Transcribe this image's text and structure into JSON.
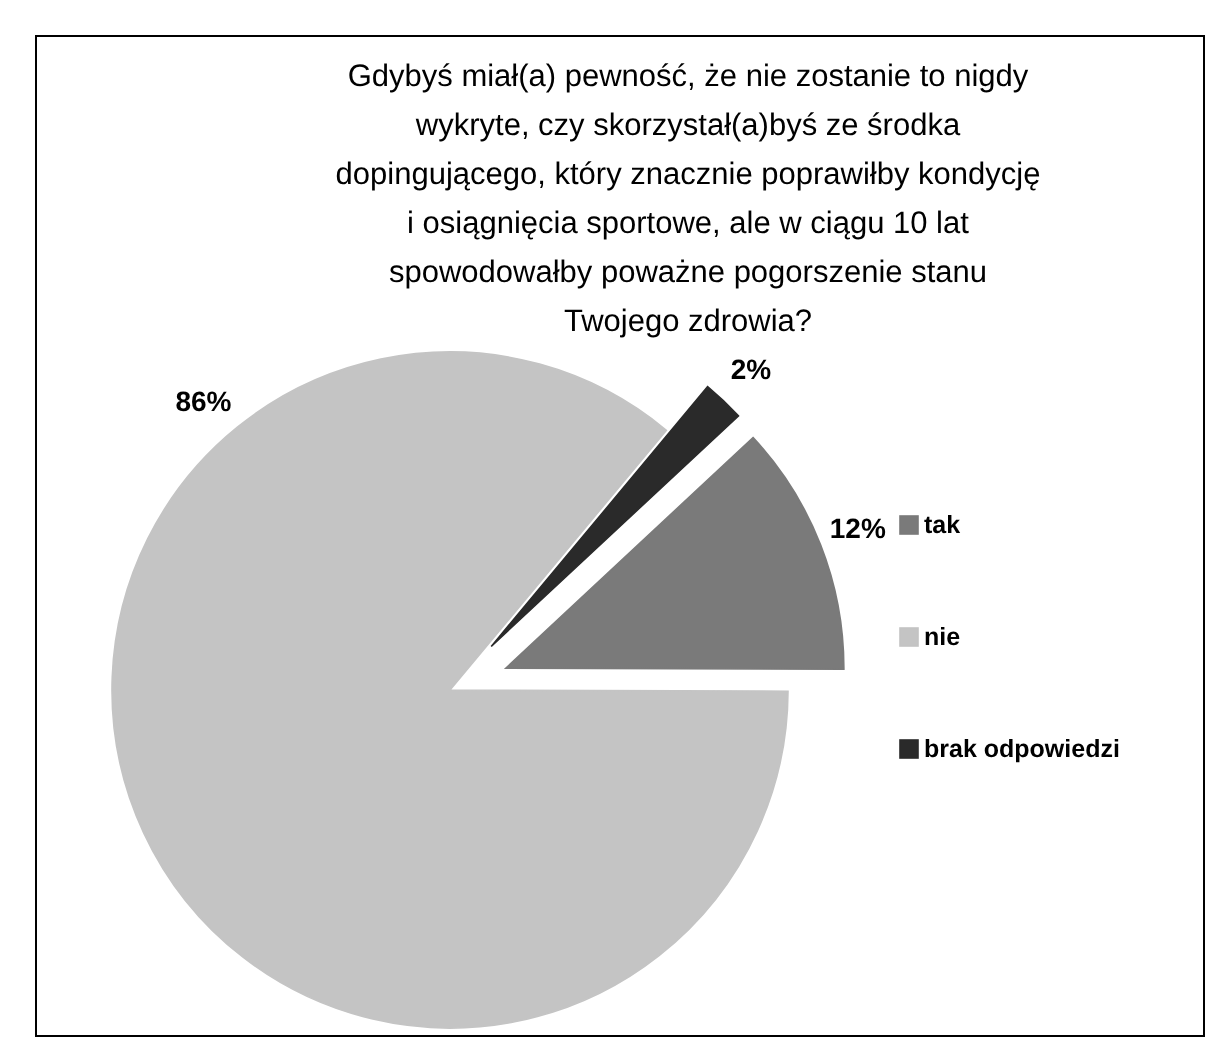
{
  "chart_data": {
    "type": "pie",
    "title": "Gdybyś miał(a) pewność, że nie zostanie to nigdy wykryte, czy skorzystał(a)byś ze środka dopingującego, który znacznie poprawiłby kondycję i osiągnięcia sportowe, ale w ciągu 10 lat spowodowałby poważne pogorszenie stanu Twojego zdrowia?",
    "categories": [
      "tak",
      "nie",
      "brak odpowiedzi"
    ],
    "values": [
      12,
      86,
      2
    ],
    "colors": [
      "#7a7a7a",
      "#c4c4c4",
      "#2a2a2a"
    ],
    "value_labels": [
      "12%",
      "86%",
      "2%"
    ],
    "legend": "right"
  }
}
